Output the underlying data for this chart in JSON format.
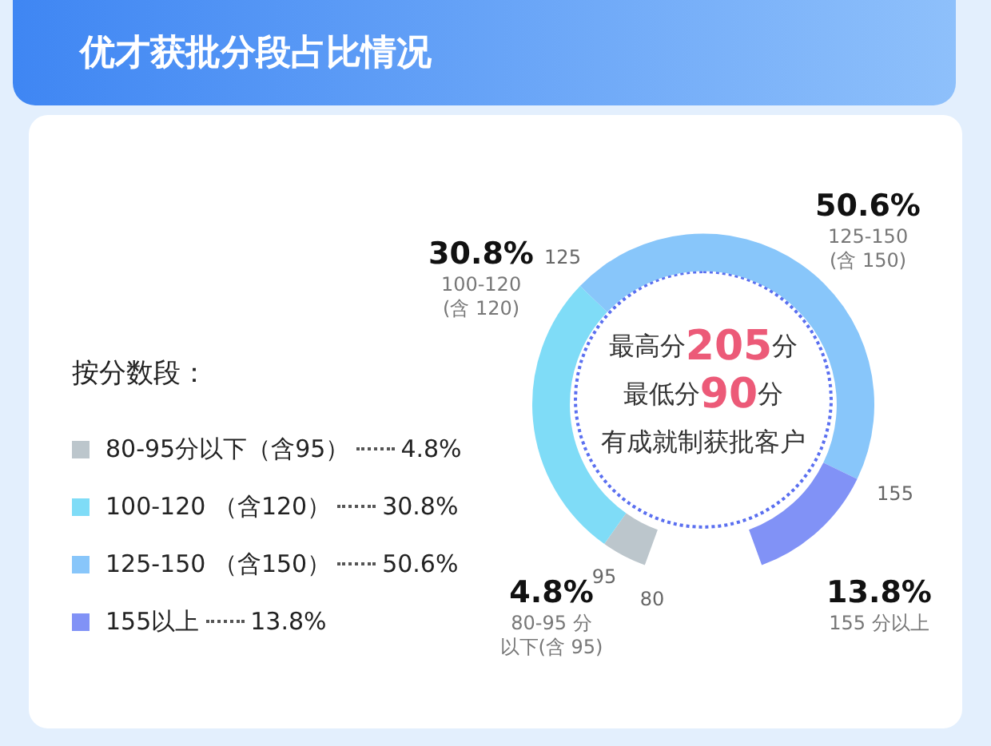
{
  "chart_data": {
    "type": "donut",
    "title": "优才获批分段占比情况",
    "legend_title": "按分数段：",
    "legend": "left",
    "categories": [
      "80-95分以下（含95）",
      "100-120 （含120）",
      "125-150 （含150）",
      "155以上"
    ],
    "values": [
      4.8,
      30.8,
      50.6,
      13.8
    ],
    "value_labels": [
      "4.8%",
      "30.8%",
      "50.6%",
      "13.8%"
    ],
    "colors": [
      "#bcc6cc",
      "#7fdcf7",
      "#88c6fa",
      "#8192f6"
    ],
    "annotations": [
      "最高分205分",
      "最低分90分",
      "有成就制获批客户",
      "80-95 分",
      "以下(含 95)",
      "100-120",
      "(含 120)",
      "125-150",
      "(含 150)",
      "155 分以上",
      "80",
      "95",
      "125",
      "155"
    ]
  }
}
